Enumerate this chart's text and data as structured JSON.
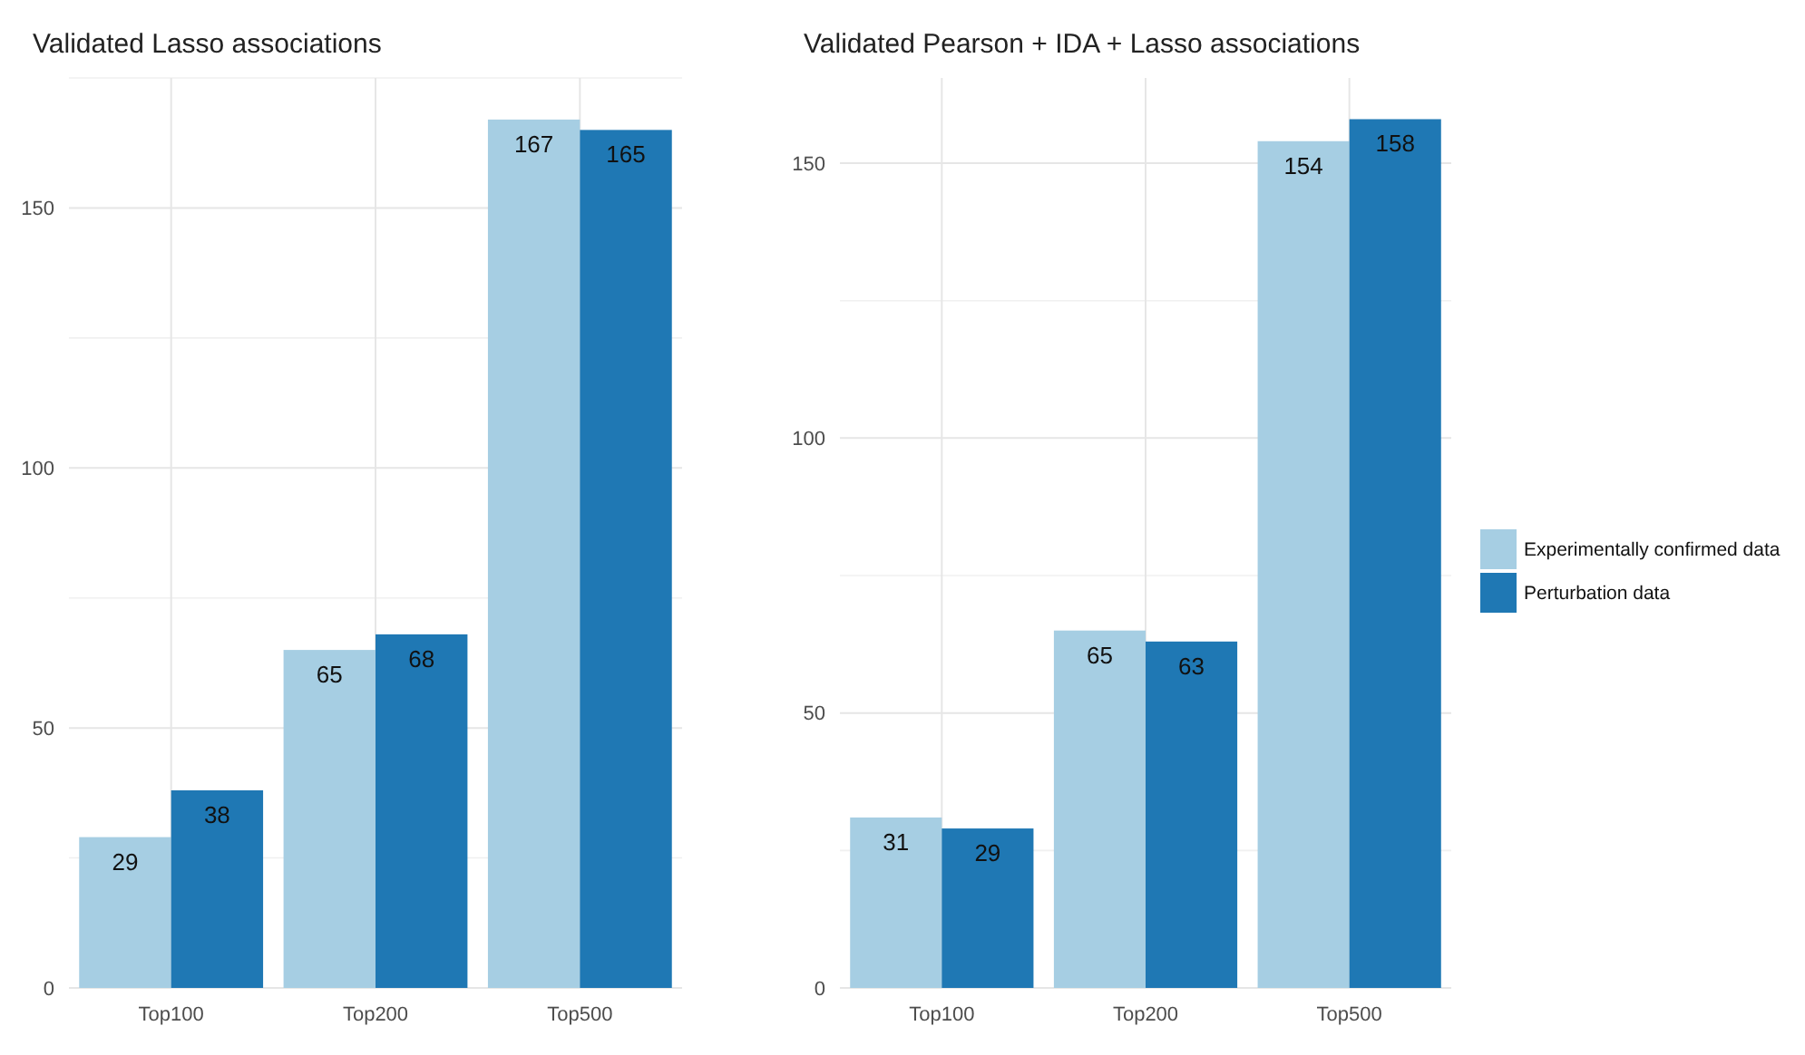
{
  "chart_data": [
    {
      "type": "bar",
      "title": "Validated Lasso associations",
      "categories": [
        "Top100",
        "Top200",
        "Top500"
      ],
      "series": [
        {
          "color": "#a6cee3",
          "values": [
            29,
            65,
            167
          ]
        },
        {
          "color": "#1f78b4",
          "values": [
            38,
            68,
            165
          ]
        }
      ],
      "ylim": [
        0,
        175
      ],
      "yticks": [
        0,
        50,
        100,
        150
      ],
      "grid": true,
      "data_labels": true,
      "legend": false
    },
    {
      "type": "bar",
      "title": "Validated Pearson + IDA + Lasso associations",
      "categories": [
        "Top100",
        "Top200",
        "Top500"
      ],
      "series": [
        {
          "name": "Experimentally confirmed data",
          "color": "#a6cee3",
          "values": [
            31,
            65,
            154
          ]
        },
        {
          "name": "Perturbation data",
          "color": "#1f78b4",
          "values": [
            29,
            63,
            158
          ]
        }
      ],
      "ylim": [
        0,
        165.5
      ],
      "yticks": [
        0,
        50,
        100,
        150
      ],
      "grid": true,
      "data_labels": true,
      "legend": "right"
    }
  ]
}
